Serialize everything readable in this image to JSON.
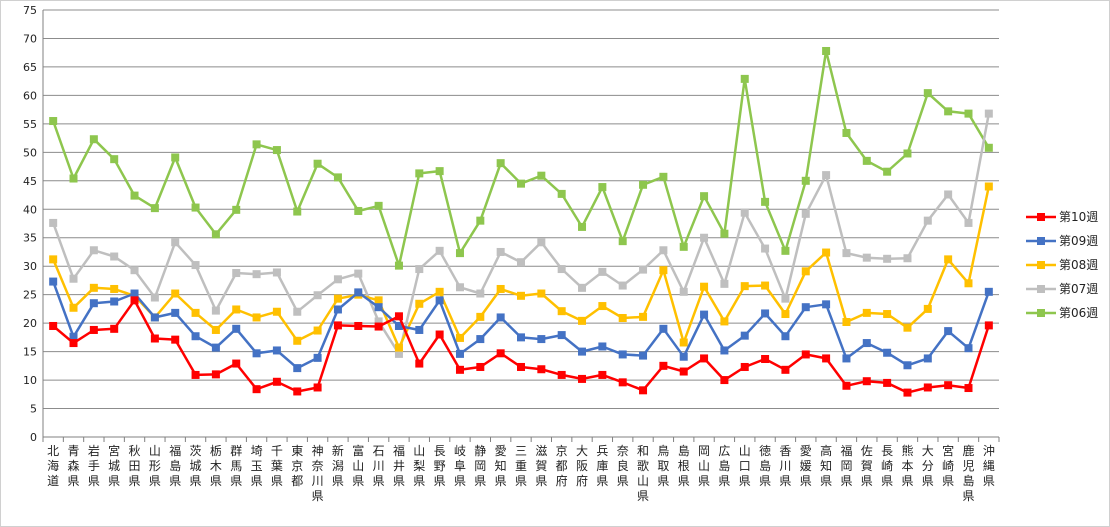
{
  "chart_data": {
    "type": "line",
    "title": "",
    "xlabel": "",
    "ylabel": "",
    "ylim": [
      0,
      75
    ],
    "ytick_step": 5,
    "grid": "horizontal",
    "legend_position": "right",
    "categories": [
      "北海道",
      "青森県",
      "岩手県",
      "宮城県",
      "秋田県",
      "山形県",
      "福島県",
      "茨城県",
      "栃木県",
      "群馬県",
      "埼玉県",
      "千葉県",
      "東京都",
      "神奈川県",
      "新潟県",
      "富山県",
      "石川県",
      "福井県",
      "山梨県",
      "長野県",
      "岐阜県",
      "静岡県",
      "愛知県",
      "三重県",
      "滋賀県",
      "京都府",
      "大阪府",
      "兵庫県",
      "奈良県",
      "和歌山県",
      "鳥取県",
      "島根県",
      "岡山県",
      "広島県",
      "山口県",
      "徳島県",
      "香川県",
      "愛媛県",
      "高知県",
      "福岡県",
      "佐賀県",
      "長崎県",
      "熊本県",
      "大分県",
      "宮崎県",
      "鹿児島県",
      "沖縄県"
    ],
    "series": [
      {
        "name": "第10週",
        "color": "#ff0000",
        "values": [
          19.5,
          16.5,
          18.8,
          19.0,
          24.0,
          17.3,
          17.1,
          10.9,
          11.0,
          12.9,
          8.4,
          9.7,
          8.0,
          8.7,
          19.6,
          19.5,
          19.4,
          21.2,
          12.9,
          18.0,
          11.8,
          12.3,
          14.7,
          12.3,
          11.9,
          10.9,
          10.2,
          10.9,
          9.6,
          8.2,
          12.5,
          11.5,
          13.8,
          10.0,
          12.3,
          13.7,
          11.8,
          14.5,
          13.8,
          9.0,
          9.8,
          9.5,
          7.8,
          8.7,
          9.1,
          8.6,
          19.6
        ]
      },
      {
        "name": "第09週",
        "color": "#4472c4",
        "values": [
          27.3,
          17.6,
          23.5,
          23.8,
          25.2,
          21.0,
          21.8,
          17.7,
          15.7,
          19.0,
          14.7,
          15.2,
          12.1,
          13.9,
          22.4,
          25.4,
          22.8,
          19.5,
          18.8,
          24.0,
          14.6,
          17.2,
          21.0,
          17.5,
          17.2,
          17.9,
          15.0,
          15.9,
          14.5,
          14.3,
          19.0,
          14.1,
          21.5,
          15.2,
          17.8,
          21.7,
          17.7,
          22.8,
          23.3,
          13.8,
          16.5,
          14.8,
          12.6,
          13.8,
          18.6,
          15.6,
          25.5
        ]
      },
      {
        "name": "第08週",
        "color": "#ffc000",
        "values": [
          31.2,
          22.7,
          26.2,
          26.0,
          24.8,
          21.0,
          25.2,
          21.8,
          18.8,
          22.4,
          21.0,
          22.0,
          16.9,
          18.7,
          24.3,
          25.0,
          24.0,
          15.7,
          23.4,
          25.5,
          17.4,
          21.1,
          26.0,
          24.8,
          25.2,
          22.1,
          20.4,
          23.0,
          20.9,
          21.1,
          29.3,
          16.6,
          26.4,
          20.3,
          26.5,
          26.6,
          21.6,
          29.1,
          32.4,
          20.2,
          21.8,
          21.6,
          19.2,
          22.5,
          31.2,
          27.0,
          44.0
        ]
      },
      {
        "name": "第07週",
        "color": "#bfbfbf",
        "values": [
          37.6,
          27.8,
          32.8,
          31.7,
          29.3,
          24.5,
          34.2,
          30.2,
          22.2,
          28.8,
          28.6,
          28.9,
          22.0,
          24.9,
          27.7,
          28.7,
          20.3,
          14.6,
          29.5,
          32.7,
          26.3,
          25.2,
          32.5,
          30.7,
          34.2,
          29.5,
          26.2,
          29.0,
          26.6,
          29.4,
          32.8,
          25.5,
          35.0,
          26.9,
          39.4,
          33.1,
          24.3,
          39.2,
          46.0,
          32.3,
          31.5,
          31.3,
          31.4,
          38.0,
          42.6,
          37.6,
          56.8
        ]
      },
      {
        "name": "第06週",
        "color": "#8ec64e",
        "values": [
          55.5,
          45.4,
          52.3,
          48.8,
          42.4,
          40.2,
          49.1,
          40.3,
          35.6,
          39.9,
          51.4,
          50.4,
          39.6,
          48.0,
          45.6,
          39.7,
          40.6,
          30.1,
          46.3,
          46.7,
          32.3,
          38.0,
          48.1,
          44.5,
          45.9,
          42.7,
          36.9,
          43.9,
          34.4,
          44.3,
          45.7,
          33.4,
          42.3,
          35.7,
          62.9,
          41.3,
          32.7,
          45.0,
          67.8,
          53.4,
          48.5,
          46.6,
          49.8,
          60.4,
          57.2,
          56.8,
          50.8
        ]
      }
    ]
  }
}
